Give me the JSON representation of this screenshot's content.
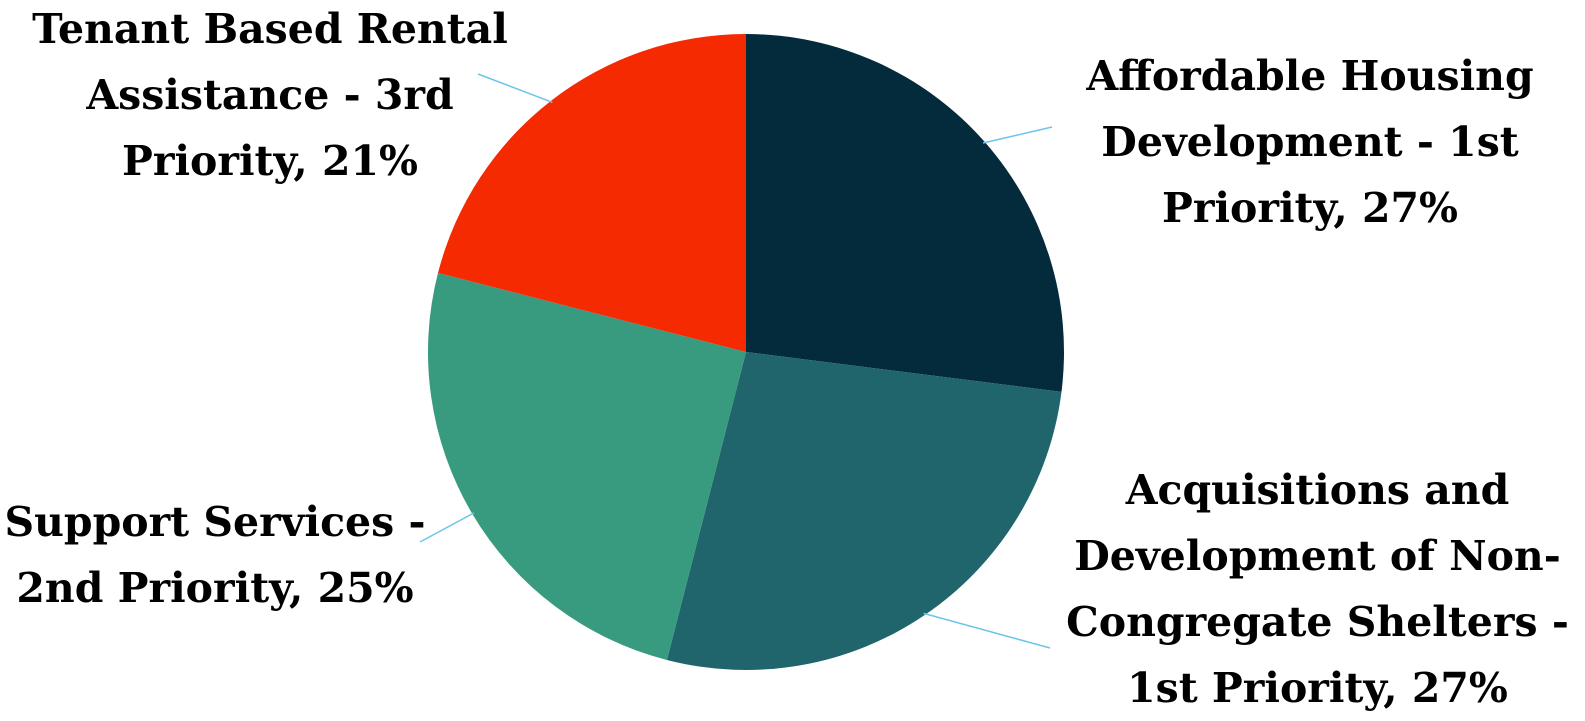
{
  "chart_data": {
    "type": "pie",
    "slices": [
      {
        "label_lines": [
          "Affordable Housing",
          "Development - 1st",
          "Priority, 27%"
        ],
        "category": "Affordable Housing Development - 1st Priority",
        "value": 27,
        "color": "#032B3C"
      },
      {
        "label_lines": [
          "Acquisitions and",
          "Development of Non-",
          "Congregate Shelters -",
          "1st Priority, 27%"
        ],
        "category": "Acquisitions and Development of Non-Congregate Shelters - 1st Priority",
        "value": 27,
        "color": "#20646C"
      },
      {
        "label_lines": [
          "Support Services -",
          "2nd Priority, 25%"
        ],
        "category": "Support Services - 2nd Priority",
        "value": 25,
        "color": "#389B7F"
      },
      {
        "label_lines": [
          "Tenant Based Rental",
          "Assistance - 3rd",
          "Priority, 21%"
        ],
        "category": "Tenant Based Rental Assistance - 3rd Priority",
        "value": 21,
        "color": "#F52A01"
      }
    ],
    "leader_line_color": "#6CC4EA"
  }
}
